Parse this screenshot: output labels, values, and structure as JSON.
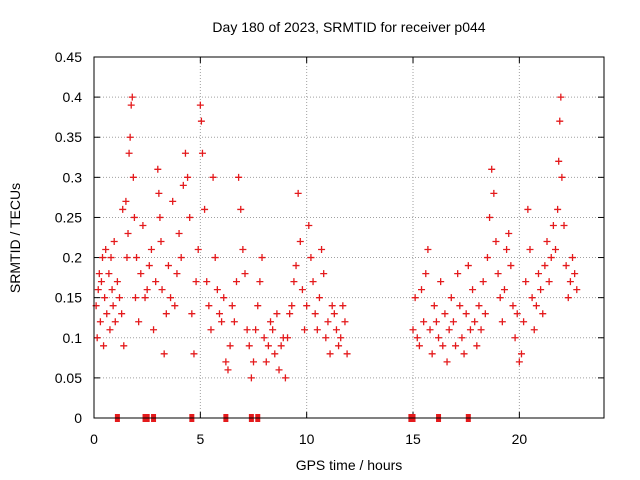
{
  "chart_data": {
    "type": "scatter",
    "title": "Day 180 of 2023, SRMTID for receiver p044",
    "xlabel": "GPS time / hours",
    "ylabel": "SRMTID / TECUs",
    "xlim": [
      0,
      23.98
    ],
    "ylim": [
      0,
      0.45
    ],
    "xticks": [
      0,
      5,
      10,
      15,
      20
    ],
    "xtick_labels": [
      "0",
      "5",
      "10",
      "15",
      "20"
    ],
    "yticks": [
      0,
      0.05,
      0.1,
      0.15,
      0.2,
      0.25,
      0.3,
      0.35,
      0.4,
      0.45
    ],
    "ytick_labels": [
      "0",
      "0.05",
      "0.1",
      "0.15",
      "0.2",
      "0.25",
      "0.3",
      "0.35",
      "0.4",
      "0.45"
    ],
    "grid": true,
    "marker": "+",
    "color": "#e41a1c",
    "data_gap_hours": [
      12.2,
      14.8
    ],
    "series": [
      {
        "name": "SRMTID p044",
        "points": [
          [
            0.1,
            0.14
          ],
          [
            0.15,
            0.1
          ],
          [
            0.2,
            0.16
          ],
          [
            0.25,
            0.18
          ],
          [
            0.3,
            0.12
          ],
          [
            0.35,
            0.17
          ],
          [
            0.4,
            0.2
          ],
          [
            0.45,
            0.09
          ],
          [
            0.5,
            0.15
          ],
          [
            0.55,
            0.21
          ],
          [
            0.6,
            0.13
          ],
          [
            0.7,
            0.18
          ],
          [
            0.75,
            0.11
          ],
          [
            0.8,
            0.2
          ],
          [
            0.85,
            0.16
          ],
          [
            0.9,
            0.14
          ],
          [
            0.95,
            0.22
          ],
          [
            1.0,
            0.12
          ],
          [
            1.1,
            0.17
          ],
          [
            1.2,
            0.15
          ],
          [
            1.3,
            0.13
          ],
          [
            1.35,
            0.26
          ],
          [
            1.4,
            0.09
          ],
          [
            1.5,
            0.27
          ],
          [
            1.55,
            0.2
          ],
          [
            1.6,
            0.23
          ],
          [
            1.65,
            0.33
          ],
          [
            1.7,
            0.35
          ],
          [
            1.75,
            0.39
          ],
          [
            1.8,
            0.4
          ],
          [
            1.85,
            0.3
          ],
          [
            1.9,
            0.25
          ],
          [
            1.95,
            0.15
          ],
          [
            2.0,
            0.2
          ],
          [
            2.1,
            0.12
          ],
          [
            2.2,
            0.18
          ],
          [
            2.3,
            0.24
          ],
          [
            2.4,
            0.15
          ],
          [
            2.5,
            0.16
          ],
          [
            2.6,
            0.19
          ],
          [
            2.7,
            0.21
          ],
          [
            2.8,
            0.11
          ],
          [
            2.9,
            0.17
          ],
          [
            3.0,
            0.31
          ],
          [
            3.05,
            0.28
          ],
          [
            3.1,
            0.25
          ],
          [
            3.15,
            0.22
          ],
          [
            3.2,
            0.16
          ],
          [
            3.3,
            0.08
          ],
          [
            3.4,
            0.13
          ],
          [
            3.5,
            0.19
          ],
          [
            3.6,
            0.15
          ],
          [
            3.7,
            0.27
          ],
          [
            3.8,
            0.14
          ],
          [
            3.9,
            0.18
          ],
          [
            4.0,
            0.23
          ],
          [
            4.1,
            0.2
          ],
          [
            4.2,
            0.29
          ],
          [
            4.3,
            0.33
          ],
          [
            4.4,
            0.3
          ],
          [
            4.5,
            0.25
          ],
          [
            4.6,
            0.13
          ],
          [
            4.7,
            0.08
          ],
          [
            4.8,
            0.17
          ],
          [
            4.9,
            0.21
          ],
          [
            5.0,
            0.39
          ],
          [
            5.05,
            0.37
          ],
          [
            5.1,
            0.33
          ],
          [
            5.2,
            0.26
          ],
          [
            5.3,
            0.17
          ],
          [
            5.4,
            0.14
          ],
          [
            5.5,
            0.11
          ],
          [
            5.6,
            0.3
          ],
          [
            5.7,
            0.2
          ],
          [
            5.8,
            0.16
          ],
          [
            5.9,
            0.13
          ],
          [
            6.0,
            0.12
          ],
          [
            6.1,
            0.15
          ],
          [
            6.2,
            0.07
          ],
          [
            6.3,
            0.06
          ],
          [
            6.4,
            0.09
          ],
          [
            6.5,
            0.14
          ],
          [
            6.6,
            0.12
          ],
          [
            6.7,
            0.17
          ],
          [
            6.8,
            0.3
          ],
          [
            6.9,
            0.26
          ],
          [
            7.0,
            0.21
          ],
          [
            7.1,
            0.18
          ],
          [
            7.2,
            0.11
          ],
          [
            7.3,
            0.09
          ],
          [
            7.4,
            0.05
          ],
          [
            7.5,
            0.07
          ],
          [
            7.6,
            0.11
          ],
          [
            7.7,
            0.14
          ],
          [
            7.8,
            0.17
          ],
          [
            7.9,
            0.2
          ],
          [
            8.0,
            0.1
          ],
          [
            8.1,
            0.07
          ],
          [
            8.2,
            0.09
          ],
          [
            8.3,
            0.12
          ],
          [
            8.4,
            0.11
          ],
          [
            8.5,
            0.08
          ],
          [
            8.6,
            0.13
          ],
          [
            8.7,
            0.06
          ],
          [
            8.8,
            0.09
          ],
          [
            8.9,
            0.1
          ],
          [
            9.0,
            0.05
          ],
          [
            9.1,
            0.1
          ],
          [
            9.2,
            0.13
          ],
          [
            9.3,
            0.14
          ],
          [
            9.4,
            0.17
          ],
          [
            9.5,
            0.19
          ],
          [
            9.6,
            0.28
          ],
          [
            9.7,
            0.22
          ],
          [
            9.8,
            0.16
          ],
          [
            9.9,
            0.11
          ],
          [
            10.0,
            0.14
          ],
          [
            10.1,
            0.24
          ],
          [
            10.2,
            0.2
          ],
          [
            10.3,
            0.17
          ],
          [
            10.4,
            0.13
          ],
          [
            10.5,
            0.11
          ],
          [
            10.6,
            0.15
          ],
          [
            10.7,
            0.21
          ],
          [
            10.8,
            0.18
          ],
          [
            10.9,
            0.1
          ],
          [
            11.0,
            0.12
          ],
          [
            11.1,
            0.08
          ],
          [
            11.2,
            0.14
          ],
          [
            11.3,
            0.13
          ],
          [
            11.4,
            0.11
          ],
          [
            11.5,
            0.09
          ],
          [
            11.6,
            0.1
          ],
          [
            11.7,
            0.14
          ],
          [
            11.8,
            0.12
          ],
          [
            11.9,
            0.08
          ],
          [
            15.0,
            0.11
          ],
          [
            15.1,
            0.15
          ],
          [
            15.2,
            0.1
          ],
          [
            15.3,
            0.09
          ],
          [
            15.4,
            0.16
          ],
          [
            15.5,
            0.12
          ],
          [
            15.6,
            0.18
          ],
          [
            15.7,
            0.21
          ],
          [
            15.8,
            0.11
          ],
          [
            15.9,
            0.08
          ],
          [
            16.0,
            0.14
          ],
          [
            16.1,
            0.12
          ],
          [
            16.2,
            0.1
          ],
          [
            16.3,
            0.17
          ],
          [
            16.4,
            0.09
          ],
          [
            16.5,
            0.13
          ],
          [
            16.6,
            0.07
          ],
          [
            16.7,
            0.11
          ],
          [
            16.8,
            0.15
          ],
          [
            16.9,
            0.12
          ],
          [
            17.0,
            0.09
          ],
          [
            17.1,
            0.18
          ],
          [
            17.2,
            0.14
          ],
          [
            17.3,
            0.1
          ],
          [
            17.4,
            0.08
          ],
          [
            17.5,
            0.13
          ],
          [
            17.6,
            0.19
          ],
          [
            17.7,
            0.11
          ],
          [
            17.8,
            0.16
          ],
          [
            17.9,
            0.12
          ],
          [
            18.0,
            0.09
          ],
          [
            18.1,
            0.14
          ],
          [
            18.2,
            0.11
          ],
          [
            18.3,
            0.17
          ],
          [
            18.4,
            0.13
          ],
          [
            18.5,
            0.2
          ],
          [
            18.6,
            0.25
          ],
          [
            18.7,
            0.31
          ],
          [
            18.8,
            0.28
          ],
          [
            18.9,
            0.22
          ],
          [
            19.0,
            0.18
          ],
          [
            19.1,
            0.15
          ],
          [
            19.2,
            0.12
          ],
          [
            19.3,
            0.16
          ],
          [
            19.4,
            0.21
          ],
          [
            19.5,
            0.23
          ],
          [
            19.6,
            0.19
          ],
          [
            19.7,
            0.14
          ],
          [
            19.8,
            0.1
          ],
          [
            19.9,
            0.13
          ],
          [
            20.0,
            0.07
          ],
          [
            20.1,
            0.08
          ],
          [
            20.2,
            0.12
          ],
          [
            20.3,
            0.17
          ],
          [
            20.4,
            0.26
          ],
          [
            20.5,
            0.21
          ],
          [
            20.6,
            0.15
          ],
          [
            20.7,
            0.11
          ],
          [
            20.8,
            0.14
          ],
          [
            20.9,
            0.18
          ],
          [
            21.0,
            0.16
          ],
          [
            21.1,
            0.13
          ],
          [
            21.2,
            0.19
          ],
          [
            21.3,
            0.22
          ],
          [
            21.4,
            0.17
          ],
          [
            21.5,
            0.2
          ],
          [
            21.6,
            0.24
          ],
          [
            21.7,
            0.21
          ],
          [
            21.8,
            0.26
          ],
          [
            21.85,
            0.32
          ],
          [
            21.9,
            0.37
          ],
          [
            21.95,
            0.4
          ],
          [
            22.0,
            0.3
          ],
          [
            22.1,
            0.24
          ],
          [
            22.2,
            0.19
          ],
          [
            22.3,
            0.15
          ],
          [
            22.4,
            0.17
          ],
          [
            22.5,
            0.2
          ],
          [
            22.6,
            0.18
          ],
          [
            22.7,
            0.16
          ]
        ]
      }
    ],
    "zero_markers_hours": [
      1.1,
      2.4,
      2.5,
      2.8,
      4.6,
      6.2,
      7.4,
      7.7,
      14.9,
      15.0,
      16.2,
      17.6
    ]
  }
}
